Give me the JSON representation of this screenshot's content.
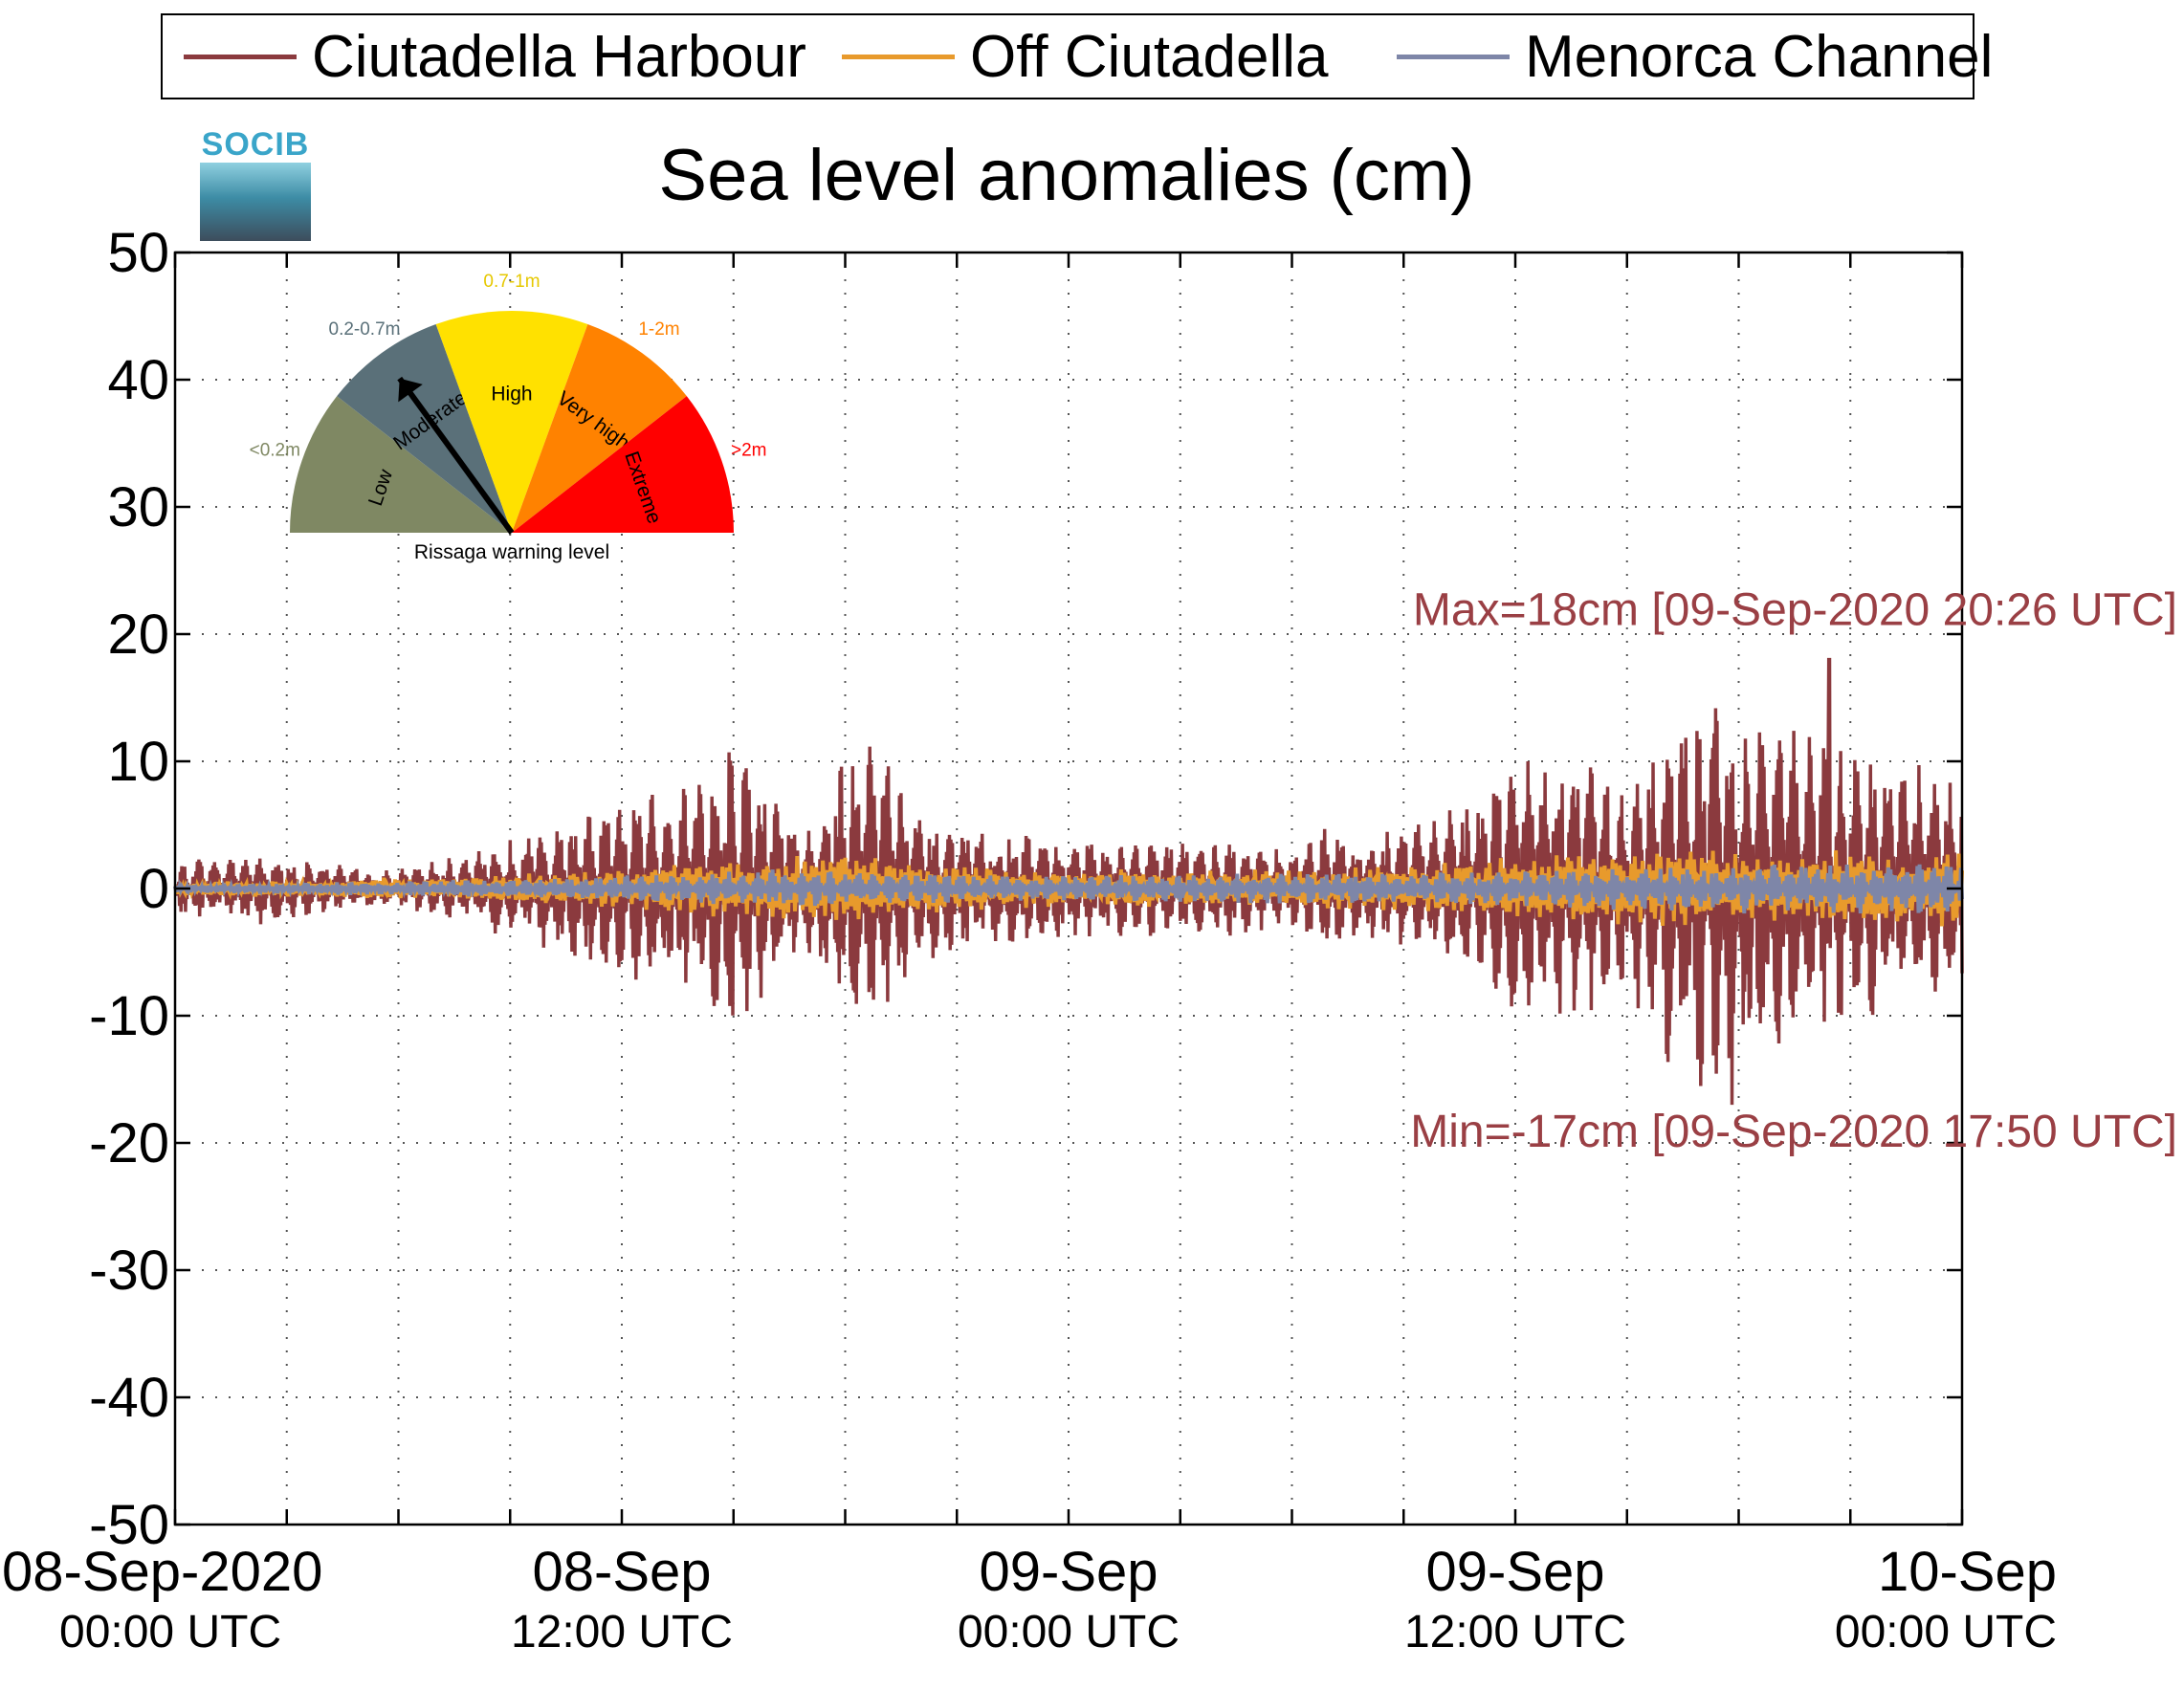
{
  "legend": {
    "items": [
      {
        "label": "Ciutadella Harbour",
        "color": "#8b3a3e"
      },
      {
        "label": "Off Ciutadella",
        "color": "#e89a2c"
      },
      {
        "label": "Menorca Channel",
        "color": "#7e86a8"
      }
    ]
  },
  "logo": {
    "text": "SOCIB"
  },
  "warning_gauge": {
    "caption": "Rissaga warning level",
    "current_level": "Moderate",
    "levels": [
      {
        "name": "Low",
        "range": "<0.2m",
        "color": "#7f8863"
      },
      {
        "name": "Moderate",
        "range": "0.2-0.7m",
        "color": "#5a7079"
      },
      {
        "name": "High",
        "range": "0.7-1m",
        "color": "#ffe100"
      },
      {
        "name": "Very high",
        "range": "1-2m",
        "color": "#ff8200"
      },
      {
        "name": "Extreme",
        "range": ">2m",
        "color": "#ff0000"
      }
    ]
  },
  "chart_data": {
    "type": "line",
    "title": "Sea level anomalies (cm)",
    "xlabel": "",
    "ylabel": "",
    "ylim": [
      -50,
      50
    ],
    "yticks": [
      "50",
      "40",
      "30",
      "20",
      "10",
      "0",
      "-10",
      "-20",
      "-30",
      "-40",
      "-50"
    ],
    "xlim_hours": [
      0,
      48
    ],
    "xticks": [
      {
        "hour": 0,
        "line1": "08-Sep-2020",
        "line2": "00:00 UTC"
      },
      {
        "hour": 12,
        "line1": "08-Sep",
        "line2": "12:00 UTC"
      },
      {
        "hour": 24,
        "line1": "09-Sep",
        "line2": "00:00 UTC"
      },
      {
        "hour": 36,
        "line1": "09-Sep",
        "line2": "12:00 UTC"
      },
      {
        "hour": 48,
        "line1": "10-Sep",
        "line2": "00:00 UTC"
      }
    ],
    "minor_tick_hours": [
      3,
      6,
      9,
      15,
      18,
      21,
      27,
      30,
      33,
      39,
      42,
      45
    ],
    "grid": "dotted",
    "series": [
      {
        "name": "Ciutadella Harbour",
        "color": "#8b3a3e",
        "amplitude_envelope": [
          [
            0,
            2
          ],
          [
            2,
            3
          ],
          [
            4,
            2
          ],
          [
            6,
            1.5
          ],
          [
            8,
            3
          ],
          [
            10,
            5
          ],
          [
            12,
            7
          ],
          [
            14,
            9
          ],
          [
            15,
            12
          ],
          [
            16,
            8
          ],
          [
            17,
            5
          ],
          [
            18,
            11
          ],
          [
            19,
            12
          ],
          [
            20,
            6
          ],
          [
            21,
            5
          ],
          [
            22,
            5
          ],
          [
            24,
            4
          ],
          [
            26,
            4
          ],
          [
            28,
            4
          ],
          [
            30,
            3
          ],
          [
            31,
            5
          ],
          [
            32,
            4
          ],
          [
            34,
            6
          ],
          [
            35,
            7
          ],
          [
            36,
            11
          ],
          [
            37,
            11
          ],
          [
            38,
            10
          ],
          [
            39,
            8
          ],
          [
            40,
            14
          ],
          [
            41,
            16
          ],
          [
            42,
            15
          ],
          [
            43,
            14
          ],
          [
            44,
            12
          ],
          [
            45,
            11
          ],
          [
            46,
            10
          ],
          [
            47,
            10
          ],
          [
            48,
            9
          ]
        ]
      },
      {
        "name": "Off Ciutadella",
        "color": "#e89a2c",
        "amplitude_envelope": [
          [
            0,
            0.5
          ],
          [
            8,
            1
          ],
          [
            12,
            1.5
          ],
          [
            15,
            2.5
          ],
          [
            17,
            3
          ],
          [
            18,
            3
          ],
          [
            20,
            2
          ],
          [
            24,
            1.5
          ],
          [
            30,
            1.5
          ],
          [
            34,
            2
          ],
          [
            36,
            2.5
          ],
          [
            40,
            3
          ],
          [
            44,
            3
          ],
          [
            48,
            3
          ]
        ]
      },
      {
        "name": "Menorca Channel",
        "color": "#7e86a8",
        "amplitude_envelope": [
          [
            0,
            0.3
          ],
          [
            10,
            0.8
          ],
          [
            16,
            1.5
          ],
          [
            24,
            1
          ],
          [
            36,
            1.5
          ],
          [
            42,
            2
          ],
          [
            48,
            2
          ]
        ]
      }
    ],
    "annotations": [
      {
        "text": "Max=18cm [09-Sep-2020 20:26 UTC]",
        "y": 21,
        "color": "#9a3f44"
      },
      {
        "text": "Min=-17cm [09-Sep-2020 17:50 UTC]",
        "y": -20,
        "color": "#9a3f44"
      }
    ],
    "max_value": 18,
    "max_hour": 44.43,
    "min_value": -17,
    "min_hour": 41.83
  }
}
